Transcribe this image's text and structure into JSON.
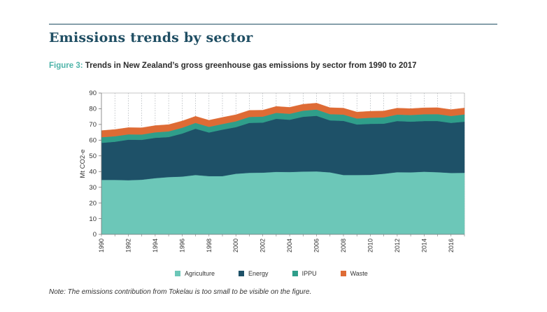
{
  "page": {
    "heading": "Emissions trends by sector",
    "figure_number": "Figure 3:",
    "figure_title": "Trends in New Zealand’s gross greenhouse gas emissions by sector from 1990 to 2017",
    "note": "Note: The emissions contribution from Tokelau is too small to be visible on the figure."
  },
  "colors": {
    "agriculture": "#6cc7b8",
    "energy": "#1e5168",
    "ippu": "#2f9e8a",
    "waste": "#de6b35",
    "heading": "#1f4e63",
    "caption_accent": "#4fb4a9"
  },
  "chart_data": {
    "type": "area",
    "stacked": true,
    "title": "",
    "xlabel": "",
    "ylabel": "Mt CO2-e",
    "ylim": [
      0,
      90
    ],
    "yticks": [
      0,
      10,
      20,
      30,
      40,
      50,
      60,
      70,
      80,
      90
    ],
    "x": [
      1990,
      1991,
      1992,
      1993,
      1994,
      1995,
      1996,
      1997,
      1998,
      1999,
      2000,
      2001,
      2002,
      2003,
      2004,
      2005,
      2006,
      2007,
      2008,
      2009,
      2010,
      2011,
      2012,
      2013,
      2014,
      2015,
      2016,
      2017
    ],
    "xticks": [
      1990,
      1992,
      1994,
      1996,
      1998,
      2000,
      2002,
      2004,
      2006,
      2008,
      2010,
      2012,
      2014,
      2016
    ],
    "grid": "vertical dotted",
    "legend_position": "bottom",
    "series": [
      {
        "name": "Agriculture",
        "color": "#6cc7b8",
        "values": [
          34.7,
          34.7,
          34.5,
          34.8,
          35.8,
          36.5,
          36.8,
          37.8,
          37.1,
          37.1,
          38.6,
          39.2,
          39.3,
          39.8,
          39.7,
          40.0,
          40.1,
          39.5,
          37.8,
          37.8,
          37.9,
          38.6,
          39.6,
          39.5,
          39.9,
          39.6,
          39.1,
          39.2
        ]
      },
      {
        "name": "Energy",
        "color": "#1e5168",
        "values": [
          23.6,
          24.3,
          25.8,
          25.4,
          25.7,
          25.5,
          27.4,
          29.5,
          27.8,
          29.6,
          29.7,
          31.8,
          31.9,
          33.8,
          33.3,
          34.9,
          35.4,
          33.1,
          34.5,
          32.2,
          32.5,
          31.9,
          32.6,
          32.3,
          32.3,
          32.6,
          31.9,
          32.6
        ]
      },
      {
        "name": "IPPU",
        "color": "#2f9e8a",
        "values": [
          3.6,
          3.5,
          3.4,
          3.4,
          3.5,
          3.6,
          3.7,
          3.7,
          3.6,
          3.6,
          3.7,
          3.8,
          3.8,
          3.8,
          3.8,
          3.9,
          4.0,
          4.0,
          4.0,
          3.8,
          3.9,
          4.0,
          4.1,
          4.2,
          4.3,
          4.4,
          4.4,
          4.6
        ]
      },
      {
        "name": "Waste",
        "color": "#de6b35",
        "values": [
          4.2,
          4.3,
          4.3,
          4.3,
          4.3,
          4.3,
          4.3,
          4.2,
          4.2,
          4.2,
          4.2,
          4.2,
          4.1,
          4.1,
          4.1,
          4.1,
          4.1,
          4.1,
          4.1,
          4.1,
          4.1,
          4.1,
          4.1,
          4.1,
          4.1,
          4.1,
          4.1,
          4.1
        ]
      }
    ]
  }
}
